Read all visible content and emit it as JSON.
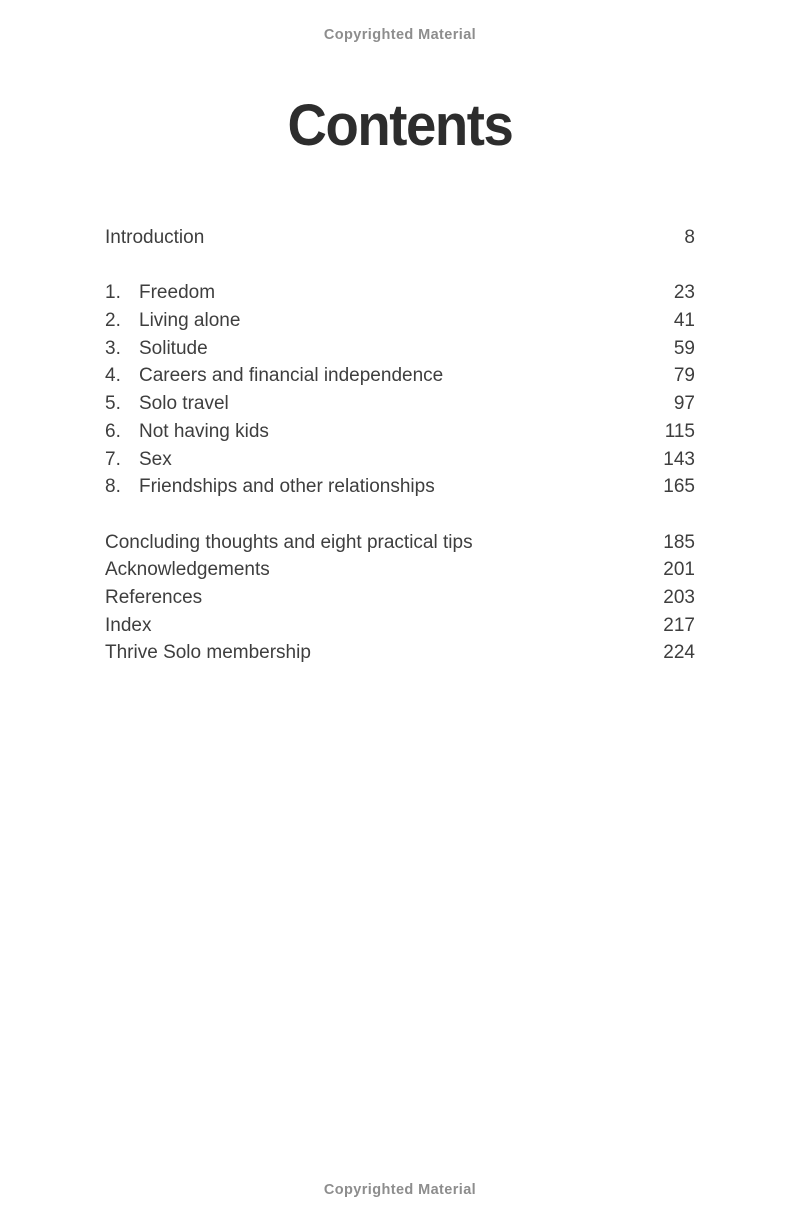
{
  "copyright_notice": "Copyrighted Material",
  "title": "Contents",
  "toc": {
    "intro": {
      "label": "Introduction",
      "page": "8"
    },
    "chapters": [
      {
        "num": "1.",
        "label": "Freedom",
        "page": "23"
      },
      {
        "num": "2.",
        "label": "Living alone",
        "page": "41"
      },
      {
        "num": "3.",
        "label": "Solitude",
        "page": "59"
      },
      {
        "num": "4.",
        "label": "Careers and financial independence",
        "page": "79"
      },
      {
        "num": "5.",
        "label": "Solo travel",
        "page": "97"
      },
      {
        "num": "6.",
        "label": "Not having kids",
        "page": "115"
      },
      {
        "num": "7.",
        "label": "Sex",
        "page": "143"
      },
      {
        "num": "8.",
        "label": "Friendships and other relationships",
        "page": "165"
      }
    ],
    "back_matter": [
      {
        "label": "Concluding thoughts and eight practical tips",
        "page": "185"
      },
      {
        "label": "Acknowledgements",
        "page": "201"
      },
      {
        "label": "References",
        "page": "203"
      },
      {
        "label": "Index",
        "page": "217"
      },
      {
        "label": "Thrive Solo membership",
        "page": "224"
      }
    ]
  },
  "colors": {
    "page_background": "#ffffff",
    "title_text": "#2d2d2d",
    "body_text": "#3e3e3e",
    "copyright_text": "#8d8d8d"
  }
}
